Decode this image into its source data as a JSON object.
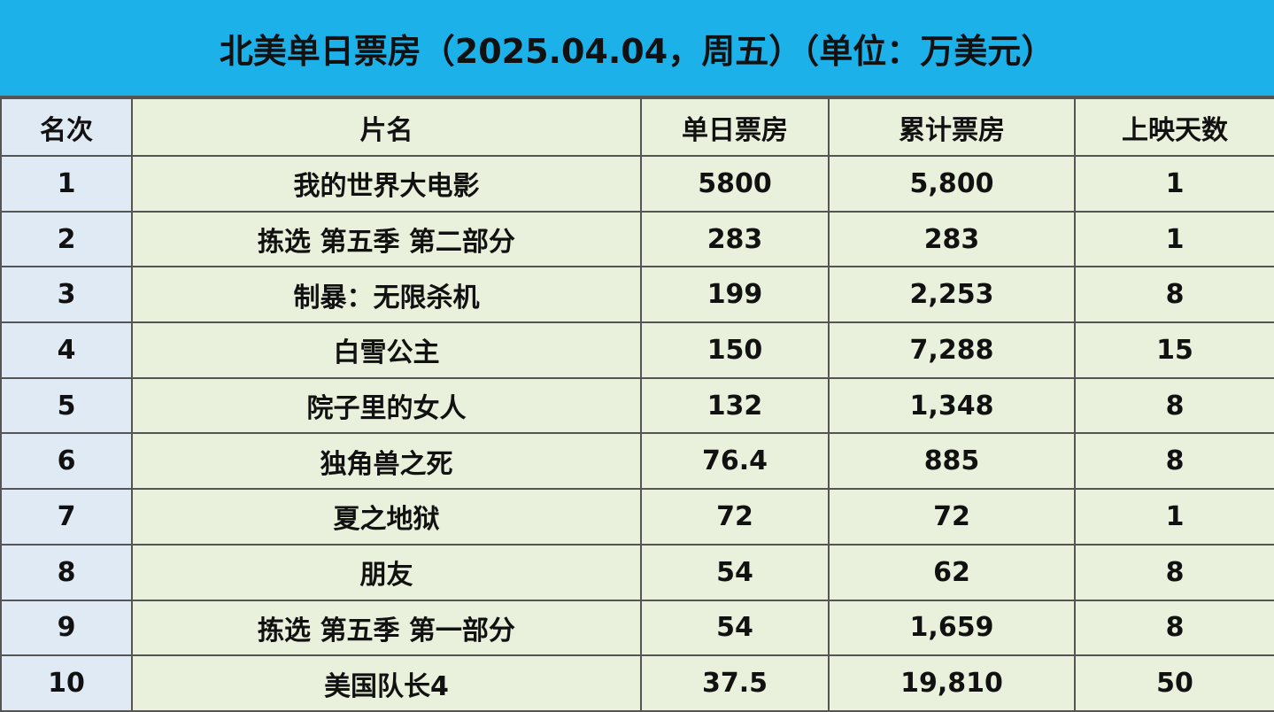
{
  "title": "北美单日票房（2025.04.04，周五）（单位：万美元）",
  "colors": {
    "title_bg": "#1db1ea",
    "rank_bg": "#dfeaf5",
    "cell_bg": "#e9f1dc"
  },
  "chart_data": {
    "type": "table",
    "title": "北美单日票房（2025.04.04，周五）（单位：万美元）",
    "columns": [
      "名次",
      "片名",
      "单日票房",
      "累计票房",
      "上映天数"
    ],
    "rows": [
      [
        "1",
        "我的世界大电影",
        "5800",
        "5,800",
        "1"
      ],
      [
        "2",
        "拣选 第五季 第二部分",
        "283",
        "283",
        "1"
      ],
      [
        "3",
        "制暴：无限杀机",
        "199",
        "2,253",
        "8"
      ],
      [
        "4",
        "白雪公主",
        "150",
        "7,288",
        "15"
      ],
      [
        "5",
        "院子里的女人",
        "132",
        "1,348",
        "8"
      ],
      [
        "6",
        "独角兽之死",
        "76.4",
        "885",
        "8"
      ],
      [
        "7",
        "夏之地狱",
        "72",
        "72",
        "1"
      ],
      [
        "8",
        "朋友",
        "54",
        "62",
        "8"
      ],
      [
        "9",
        "拣选 第五季 第一部分",
        "54",
        "1,659",
        "8"
      ],
      [
        "10",
        "美国队长4",
        "37.5",
        "19,810",
        "50"
      ]
    ]
  }
}
